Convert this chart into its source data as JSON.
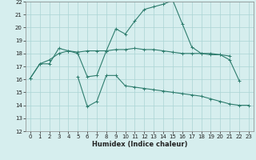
{
  "xlabel": "Humidex (Indice chaleur)",
  "x": [
    0,
    1,
    2,
    3,
    4,
    5,
    6,
    7,
    8,
    9,
    10,
    11,
    12,
    13,
    14,
    15,
    16,
    17,
    18,
    19,
    20,
    21,
    22,
    23
  ],
  "line1": [
    16.1,
    17.2,
    17.2,
    18.4,
    18.2,
    18.0,
    16.2,
    16.3,
    18.2,
    19.9,
    19.5,
    20.5,
    21.4,
    21.6,
    21.8,
    22.1,
    20.3,
    18.5,
    18.0,
    18.0,
    17.9,
    17.5,
    15.9,
    null
  ],
  "line2": [
    16.1,
    17.2,
    17.5,
    18.0,
    18.2,
    18.1,
    18.2,
    18.2,
    18.2,
    18.3,
    18.3,
    18.4,
    18.3,
    18.3,
    18.2,
    18.1,
    18.0,
    18.0,
    18.0,
    17.9,
    17.9,
    17.8,
    null,
    null
  ],
  "line3": [
    null,
    null,
    null,
    null,
    null,
    16.2,
    13.9,
    14.3,
    16.3,
    16.3,
    15.5,
    15.4,
    15.3,
    15.2,
    15.1,
    15.0,
    14.9,
    14.8,
    14.7,
    14.5,
    14.3,
    14.1,
    14.0,
    14.0
  ],
  "ylim": [
    12,
    22
  ],
  "xlim": [
    -0.5,
    23.5
  ],
  "yticks": [
    12,
    13,
    14,
    15,
    16,
    17,
    18,
    19,
    20,
    21,
    22
  ],
  "xticks": [
    0,
    1,
    2,
    3,
    4,
    5,
    6,
    7,
    8,
    9,
    10,
    11,
    12,
    13,
    14,
    15,
    16,
    17,
    18,
    19,
    20,
    21,
    22,
    23
  ],
  "line_color": "#2e7d6e",
  "bg_color": "#d6eeee",
  "grid_color": "#aad4d4",
  "marker": "+",
  "linewidth": 0.8,
  "markersize": 3.5,
  "tick_fontsize": 5.0,
  "xlabel_fontsize": 6.0
}
